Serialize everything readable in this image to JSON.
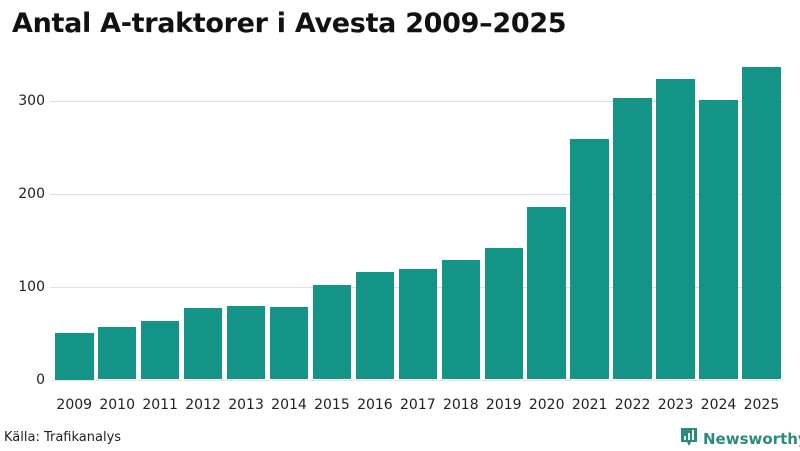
{
  "title": "Antal A-traktorer i Avesta 2009–2025",
  "source": "Källa: Trafikanalys",
  "brand": {
    "name": "Newsworthy",
    "icon": "bar-chart-speech-bubble-icon",
    "color": "#2a8a7c"
  },
  "colors": {
    "bar": "#139486",
    "grid": "#dedee3"
  },
  "chart_data": {
    "type": "bar",
    "title": "Antal A-traktorer i Avesta 2009–2025",
    "xlabel": "",
    "ylabel": "",
    "categories": [
      "2009",
      "2010",
      "2011",
      "2012",
      "2013",
      "2014",
      "2015",
      "2016",
      "2017",
      "2018",
      "2019",
      "2020",
      "2021",
      "2022",
      "2023",
      "2024",
      "2025"
    ],
    "values": [
      50,
      56,
      63,
      77,
      79,
      78,
      102,
      116,
      119,
      128,
      141,
      185,
      259,
      303,
      323,
      301,
      336
    ],
    "yticks": [
      0,
      100,
      200,
      300
    ],
    "ylim": [
      0,
      340
    ],
    "grid": true,
    "legend": null,
    "source": "Källa: Trafikanalys"
  }
}
